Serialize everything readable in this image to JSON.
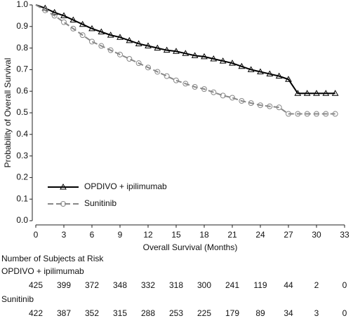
{
  "chart_data": {
    "type": "line",
    "x": [
      0,
      1,
      2,
      3,
      4,
      5,
      6,
      7,
      8,
      9,
      10,
      11,
      12,
      13,
      14,
      15,
      16,
      17,
      18,
      19,
      20,
      21,
      22,
      23,
      24,
      25,
      26,
      27,
      28,
      29,
      30,
      31,
      32
    ],
    "series": [
      {
        "name": "OPDIVO + ipilimumab",
        "color": "#000000",
        "marker": "triangle",
        "dash": false,
        "values": [
          1.0,
          0.985,
          0.965,
          0.95,
          0.93,
          0.91,
          0.89,
          0.875,
          0.86,
          0.85,
          0.835,
          0.82,
          0.81,
          0.8,
          0.79,
          0.785,
          0.775,
          0.765,
          0.76,
          0.75,
          0.74,
          0.73,
          0.715,
          0.7,
          0.69,
          0.68,
          0.67,
          0.655,
          0.59,
          0.59,
          0.59,
          0.59,
          0.59
        ]
      },
      {
        "name": "Sunitinib",
        "color": "#888888",
        "marker": "circle",
        "dash": true,
        "values": [
          1.0,
          0.975,
          0.95,
          0.92,
          0.89,
          0.86,
          0.83,
          0.81,
          0.79,
          0.77,
          0.75,
          0.73,
          0.71,
          0.69,
          0.67,
          0.65,
          0.635,
          0.62,
          0.61,
          0.595,
          0.58,
          0.57,
          0.555,
          0.545,
          0.535,
          0.53,
          0.525,
          0.495,
          0.495,
          0.495,
          0.495,
          0.495,
          0.495
        ]
      }
    ],
    "xlim": [
      0,
      33
    ],
    "ylim": [
      0,
      1
    ],
    "xticks": [
      0,
      3,
      6,
      9,
      12,
      15,
      18,
      21,
      24,
      27,
      30,
      33
    ],
    "yticks": [
      {
        "value": 0,
        "label": "0.0"
      },
      0.1,
      0.2,
      0.3,
      0.4,
      0.5,
      0.6,
      0.7,
      0.8,
      0.9,
      {
        "value": 1,
        "label": "1.0"
      }
    ],
    "xlabel": "Overall Survival (Months)",
    "ylabel": "Probability of Overall Survival",
    "grid": false
  },
  "risk_table": {
    "title": "Number of Subjects at Risk",
    "rows": [
      {
        "name": "OPDIVO + ipilimumab",
        "values": [
          425,
          399,
          372,
          348,
          332,
          318,
          300,
          241,
          119,
          44,
          2,
          0
        ]
      },
      {
        "name": "Sunitinib",
        "values": [
          422,
          387,
          352,
          315,
          288,
          253,
          225,
          179,
          89,
          34,
          3,
          0
        ]
      }
    ]
  }
}
